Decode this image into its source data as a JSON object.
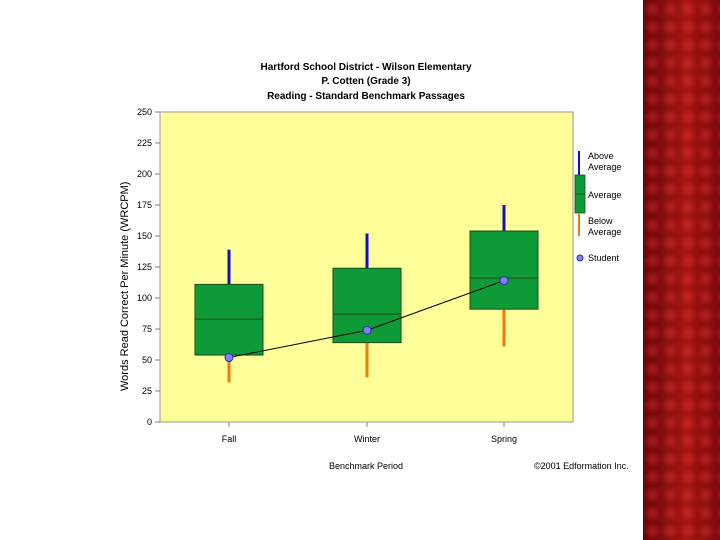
{
  "colors": {
    "plot_background": "#ffff99",
    "box_fill": "#0f9a38",
    "box_stroke": "#1a4d1a",
    "above_whisker": "#1010c8",
    "below_whisker": "#f07a10",
    "student_line": "#000000",
    "student_marker": "#8080ff",
    "side_band": "#8e0c0c"
  },
  "chart_data": {
    "type": "box",
    "title": [
      "Hartford School District - Wilson Elementary",
      "P. Cotten (Grade 3)",
      "Reading - Standard Benchmark Passages"
    ],
    "xlabel": "Benchmark Period",
    "ylabel": "Words Read Correct Per Minute (WRCPM)",
    "ylim": [
      0,
      250
    ],
    "yticks": [
      "0",
      "25",
      "50",
      "75",
      "100",
      "125",
      "150",
      "175",
      "200",
      "225",
      "250"
    ],
    "categories": [
      "Fall",
      "Winter",
      "Spring"
    ],
    "boxes": [
      {
        "min": 32,
        "q1": 54,
        "median": 83,
        "q3": 111,
        "max": 139
      },
      {
        "min": 36,
        "q1": 64,
        "median": 87,
        "q3": 124,
        "max": 152
      },
      {
        "min": 61,
        "q1": 91,
        "median": 116,
        "q3": 154,
        "max": 175
      }
    ],
    "student": {
      "name": "Student",
      "values": [
        52,
        74,
        114
      ]
    },
    "legend": {
      "position": "right",
      "above": "Above Average",
      "average": "Average",
      "below": "Below Average",
      "student": "Student"
    }
  },
  "footer": {
    "copyright": "©2001 Edformation Inc."
  }
}
